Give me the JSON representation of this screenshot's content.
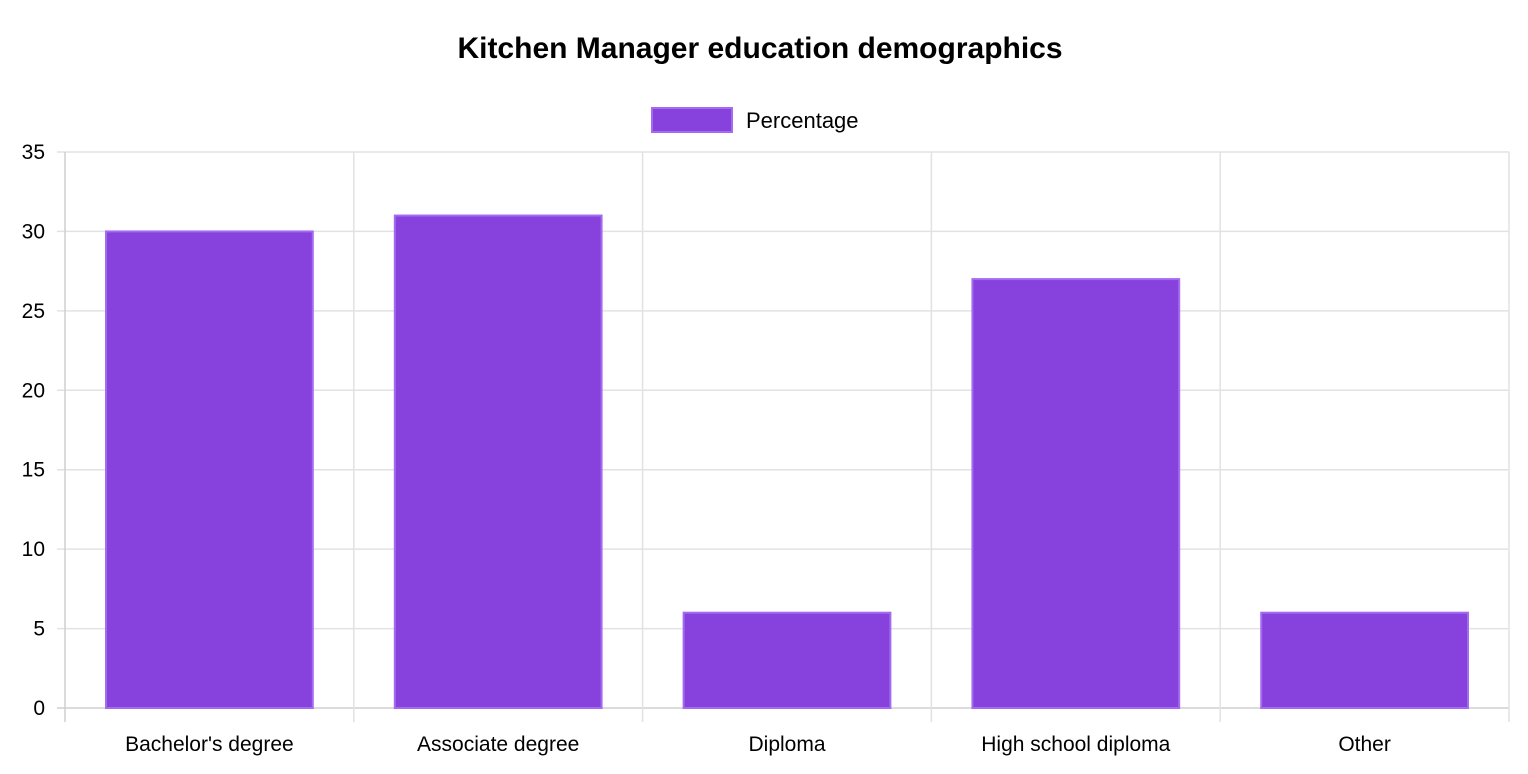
{
  "chart_data": {
    "type": "bar",
    "title": "Kitchen Manager education demographics",
    "categories": [
      "Bachelor's degree",
      "Associate degree",
      "Diploma",
      "High school diploma",
      "Other"
    ],
    "series": [
      {
        "name": "Percentage",
        "values": [
          30,
          31,
          6,
          27,
          6
        ]
      }
    ],
    "ylim": [
      0,
      35
    ],
    "yticks": [
      0,
      5,
      10,
      15,
      20,
      25,
      30,
      35
    ],
    "grid": true,
    "legend_position": "top-center",
    "colors": {
      "bar_fill": "#8742DE",
      "bar_border": "#A46BF0"
    }
  }
}
